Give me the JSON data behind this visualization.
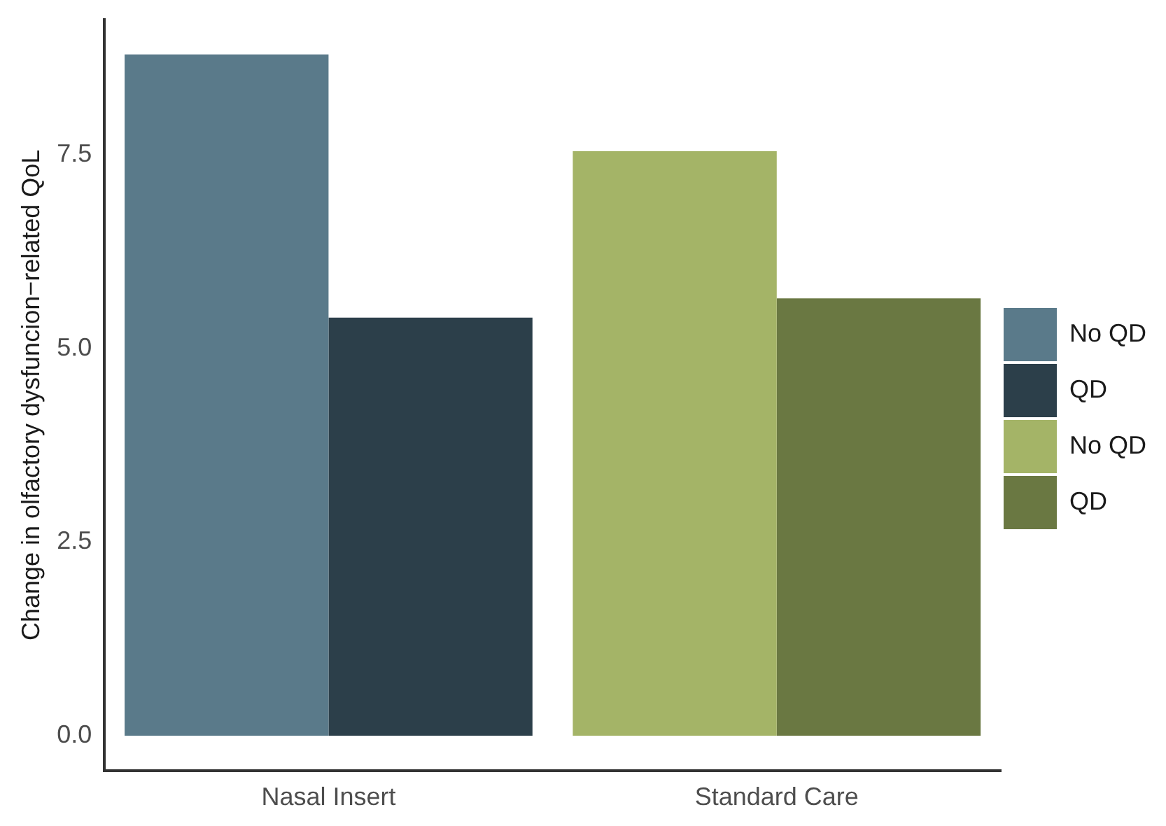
{
  "chart_data": {
    "type": "bar",
    "ylabel": "Change in olfactory dysfuncion−related QoL",
    "categories": [
      "Nasal Insert",
      "Standard Care"
    ],
    "series": [
      {
        "name": "No QD",
        "color": "#5a7a8a",
        "values": [
          8.8,
          null
        ]
      },
      {
        "name": "QD",
        "color": "#2c3f4a",
        "values": [
          5.4,
          null
        ]
      },
      {
        "name": "No QD",
        "color": "#a4b467",
        "values": [
          null,
          7.55
        ]
      },
      {
        "name": "QD",
        "color": "#6a7842",
        "values": [
          null,
          5.65
        ]
      }
    ],
    "ylim": [
      -0.45,
      9.25
    ],
    "yticks": [
      {
        "value": 0,
        "label": "0.0"
      },
      {
        "value": 2.5,
        "label": "2.5"
      },
      {
        "value": 5,
        "label": "5.0"
      },
      {
        "value": 7.5,
        "label": "7.5"
      }
    ],
    "grid": false,
    "legend": "right"
  }
}
